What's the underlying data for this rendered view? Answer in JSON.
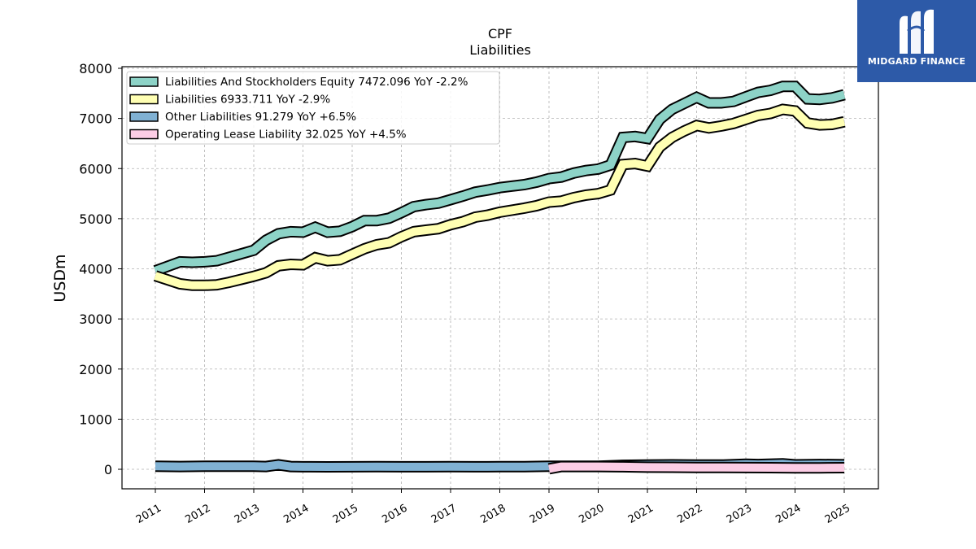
{
  "brand": {
    "name": "MIDGARD FINANCE",
    "logo_icon": "midgard-logo-icon",
    "background": "#2d5aa8"
  },
  "chart_data": {
    "type": "area",
    "title": "CPF",
    "subtitle": "Liabilities",
    "xlabel": "",
    "ylabel": "USDm",
    "ylim": [
      -380,
      8000
    ],
    "yticks": [
      0,
      1000,
      2000,
      3000,
      4000,
      5000,
      6000,
      7000,
      8000
    ],
    "xticks": [
      "2011",
      "2012",
      "2013",
      "2014",
      "2015",
      "2016",
      "2017",
      "2018",
      "2019",
      "2020",
      "2021",
      "2022",
      "2023",
      "2024",
      "2025"
    ],
    "grid": true,
    "legend_position": "top-left",
    "series": [
      {
        "name": "Liabilities And Stockholders Equity",
        "legend": "Liabilities And Stockholders Equity  7472.096 YoY -2.2%",
        "color": "#8dd3c7",
        "points": [
          [
            "2011-01",
            3960
          ],
          [
            "2011-07",
            4140
          ],
          [
            "2011-10",
            4130
          ],
          [
            "2012-01",
            4140
          ],
          [
            "2012-04",
            4160
          ],
          [
            "2012-07",
            4230
          ],
          [
            "2012-10",
            4300
          ],
          [
            "2013-01",
            4370
          ],
          [
            "2013-04",
            4570
          ],
          [
            "2013-07",
            4700
          ],
          [
            "2013-10",
            4740
          ],
          [
            "2014-01",
            4730
          ],
          [
            "2014-04",
            4830
          ],
          [
            "2014-07",
            4730
          ],
          [
            "2014-10",
            4750
          ],
          [
            "2015-01",
            4840
          ],
          [
            "2015-04",
            4960
          ],
          [
            "2015-07",
            4960
          ],
          [
            "2015-10",
            5010
          ],
          [
            "2016-01",
            5120
          ],
          [
            "2016-04",
            5240
          ],
          [
            "2016-07",
            5280
          ],
          [
            "2016-10",
            5310
          ],
          [
            "2017-01",
            5380
          ],
          [
            "2017-04",
            5450
          ],
          [
            "2017-07",
            5530
          ],
          [
            "2017-10",
            5570
          ],
          [
            "2018-01",
            5620
          ],
          [
            "2018-04",
            5650
          ],
          [
            "2018-07",
            5680
          ],
          [
            "2018-10",
            5730
          ],
          [
            "2019-01",
            5800
          ],
          [
            "2019-04",
            5830
          ],
          [
            "2019-07",
            5910
          ],
          [
            "2019-10",
            5960
          ],
          [
            "2020-01",
            5990
          ],
          [
            "2020-04",
            6070
          ],
          [
            "2020-07",
            6620
          ],
          [
            "2020-10",
            6640
          ],
          [
            "2021-01",
            6600
          ],
          [
            "2021-04",
            6980
          ],
          [
            "2021-07",
            7180
          ],
          [
            "2021-10",
            7300
          ],
          [
            "2022-01",
            7420
          ],
          [
            "2022-04",
            7310
          ],
          [
            "2022-07",
            7310
          ],
          [
            "2022-10",
            7340
          ],
          [
            "2023-01",
            7430
          ],
          [
            "2023-04",
            7520
          ],
          [
            "2023-07",
            7560
          ],
          [
            "2023-10",
            7640
          ],
          [
            "2024-01",
            7640
          ],
          [
            "2024-04",
            7390
          ],
          [
            "2024-07",
            7380
          ],
          [
            "2024-10",
            7410
          ],
          [
            "2025-01",
            7472
          ]
        ]
      },
      {
        "name": "Liabilities",
        "legend": "Liabilities  6933.711 YoY -2.9%",
        "color": "#ffffb3",
        "points": [
          [
            "2011-01",
            3860
          ],
          [
            "2011-07",
            3700
          ],
          [
            "2011-10",
            3670
          ],
          [
            "2012-01",
            3670
          ],
          [
            "2012-04",
            3680
          ],
          [
            "2012-07",
            3730
          ],
          [
            "2012-10",
            3790
          ],
          [
            "2013-01",
            3850
          ],
          [
            "2013-04",
            3920
          ],
          [
            "2013-07",
            4060
          ],
          [
            "2013-10",
            4090
          ],
          [
            "2014-01",
            4080
          ],
          [
            "2014-04",
            4220
          ],
          [
            "2014-07",
            4160
          ],
          [
            "2014-10",
            4180
          ],
          [
            "2015-01",
            4290
          ],
          [
            "2015-04",
            4400
          ],
          [
            "2015-07",
            4480
          ],
          [
            "2015-10",
            4520
          ],
          [
            "2016-01",
            4640
          ],
          [
            "2016-04",
            4740
          ],
          [
            "2016-07",
            4770
          ],
          [
            "2016-10",
            4800
          ],
          [
            "2017-01",
            4880
          ],
          [
            "2017-04",
            4940
          ],
          [
            "2017-07",
            5030
          ],
          [
            "2017-10",
            5070
          ],
          [
            "2018-01",
            5130
          ],
          [
            "2018-04",
            5170
          ],
          [
            "2018-07",
            5210
          ],
          [
            "2018-10",
            5260
          ],
          [
            "2019-01",
            5330
          ],
          [
            "2019-04",
            5350
          ],
          [
            "2019-07",
            5420
          ],
          [
            "2019-10",
            5470
          ],
          [
            "2020-01",
            5500
          ],
          [
            "2020-04",
            5570
          ],
          [
            "2020-07",
            6080
          ],
          [
            "2020-10",
            6100
          ],
          [
            "2021-01",
            6050
          ],
          [
            "2021-04",
            6430
          ],
          [
            "2021-07",
            6620
          ],
          [
            "2021-10",
            6750
          ],
          [
            "2022-01",
            6860
          ],
          [
            "2022-04",
            6810
          ],
          [
            "2022-07",
            6850
          ],
          [
            "2022-10",
            6900
          ],
          [
            "2023-01",
            6980
          ],
          [
            "2023-04",
            7060
          ],
          [
            "2023-07",
            7100
          ],
          [
            "2023-10",
            7180
          ],
          [
            "2024-01",
            7150
          ],
          [
            "2024-04",
            6910
          ],
          [
            "2024-07",
            6870
          ],
          [
            "2024-10",
            6880
          ],
          [
            "2025-01",
            6934
          ]
        ]
      },
      {
        "name": "Other Liabilities",
        "legend": "Other Liabilities  91.279 YoY +6.5%",
        "color": "#80b1d3",
        "points": [
          [
            "2011-01",
            60
          ],
          [
            "2011-07",
            55
          ],
          [
            "2012-01",
            60
          ],
          [
            "2012-07",
            62
          ],
          [
            "2013-01",
            62
          ],
          [
            "2013-04",
            55
          ],
          [
            "2013-07",
            90
          ],
          [
            "2013-10",
            55
          ],
          [
            "2014-01",
            50
          ],
          [
            "2014-07",
            48
          ],
          [
            "2015-01",
            50
          ],
          [
            "2015-07",
            52
          ],
          [
            "2016-01",
            50
          ],
          [
            "2016-07",
            50
          ],
          [
            "2017-01",
            52
          ],
          [
            "2017-07",
            50
          ],
          [
            "2017-10",
            50
          ],
          [
            "2018-01",
            52
          ],
          [
            "2018-07",
            52
          ],
          [
            "2019-01",
            60
          ],
          [
            "2019-07",
            62
          ],
          [
            "2020-01",
            62
          ],
          [
            "2020-07",
            80
          ],
          [
            "2021-01",
            85
          ],
          [
            "2021-07",
            90
          ],
          [
            "2022-01",
            85
          ],
          [
            "2022-07",
            85
          ],
          [
            "2023-01",
            100
          ],
          [
            "2023-04",
            95
          ],
          [
            "2023-10",
            110
          ],
          [
            "2024-01",
            90
          ],
          [
            "2024-07",
            95
          ],
          [
            "2025-01",
            91
          ]
        ]
      },
      {
        "name": "Operating Lease Liability",
        "legend": "Operating Lease Liability  32.025 YoY +4.5%",
        "color": "#fccde5",
        "points": [
          [
            "2019-01",
            10
          ],
          [
            "2019-04",
            55
          ],
          [
            "2019-07",
            55
          ],
          [
            "2020-01",
            55
          ],
          [
            "2020-07",
            50
          ],
          [
            "2021-01",
            42
          ],
          [
            "2021-07",
            40
          ],
          [
            "2022-01",
            38
          ],
          [
            "2022-07",
            36
          ],
          [
            "2023-01",
            34
          ],
          [
            "2023-07",
            32
          ],
          [
            "2024-01",
            28
          ],
          [
            "2024-07",
            30
          ],
          [
            "2025-01",
            32
          ]
        ]
      }
    ]
  }
}
